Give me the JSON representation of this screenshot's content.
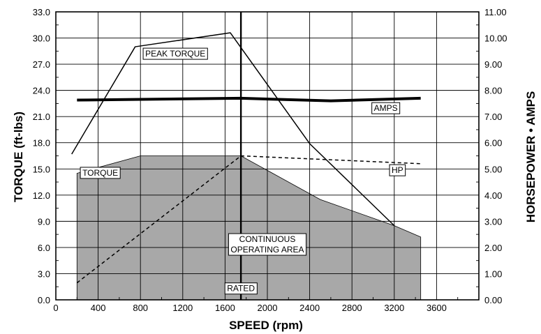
{
  "chart_data": {
    "type": "line",
    "title": "",
    "xlabel": "SPEED (rpm)",
    "ylabel_left": "TORQUE (ft-lbs)",
    "ylabel_right": "HORSEPOWER • AMPS",
    "xlim": [
      0,
      4000
    ],
    "ylim_left": [
      0,
      33
    ],
    "ylim_right": [
      0,
      11
    ],
    "grid": true,
    "x_ticks": [
      0,
      400,
      800,
      1200,
      1600,
      2000,
      2400,
      2800,
      3200,
      3600
    ],
    "x_tick_labels": [
      "0",
      "400",
      "800",
      "1200",
      "1600",
      "2000",
      "2400",
      "2800",
      "3200",
      "3600"
    ],
    "y_left_ticks": [
      0,
      3,
      6,
      9,
      12,
      15,
      18,
      21,
      24,
      27,
      30,
      33
    ],
    "y_left_tick_labels": [
      "0.0",
      "3.0",
      "6.0",
      "9.0",
      "12.0",
      "15.0",
      "18.0",
      "21.0",
      "24.0",
      "27.0",
      "30.0",
      "33.0"
    ],
    "y_right_ticks": [
      0,
      1,
      2,
      3,
      4,
      5,
      6,
      7,
      8,
      9,
      10,
      11
    ],
    "y_right_tick_labels": [
      "0.00",
      "1.00",
      "2.00",
      "3.00",
      "4.00",
      "5.00",
      "6.00",
      "7.00",
      "8.00",
      "9.00",
      "10.00",
      "11.00"
    ],
    "continuous_area": {
      "axis": "left",
      "color": "#a8a8a8",
      "points": [
        [
          200,
          0
        ],
        [
          200,
          14.5
        ],
        [
          800,
          16.5
        ],
        [
          1750,
          16.5
        ],
        [
          2500,
          11.5
        ],
        [
          3200,
          8.5
        ],
        [
          3450,
          7.2
        ],
        [
          3450,
          0
        ]
      ]
    },
    "rated_speed": 1750,
    "series": [
      {
        "axis": "left",
        "style": "solid",
        "width": 1.5,
        "x": [
          150,
          750,
          1650,
          2400,
          3200
        ],
        "y": [
          16.7,
          29.0,
          30.6,
          17.9,
          8.5
        ]
      },
      {
        "axis": "right",
        "style": "solid",
        "width": 4,
        "x": [
          200,
          1750,
          2600,
          3450
        ],
        "y": [
          7.63,
          7.7,
          7.6,
          7.7
        ]
      },
      {
        "axis": "right",
        "style": "dashed",
        "width": 1.5,
        "x": [
          200,
          1750,
          3450
        ],
        "y": [
          0.65,
          5.5,
          5.2
        ]
      }
    ],
    "annotations": [
      {
        "text": "PEAK TORQUE",
        "x": 1130,
        "y": 28.2,
        "axis": "left"
      },
      {
        "text": "AMPS",
        "x": 3120,
        "y": 7.32,
        "axis": "right"
      },
      {
        "text": "HP",
        "x": 3230,
        "y": 4.95,
        "axis": "right"
      },
      {
        "text": "TORQUE",
        "x": 420,
        "y": 14.55,
        "axis": "left"
      },
      {
        "text": "CONTINUOUS",
        "x": 2000,
        "y": 6.95,
        "axis": "left"
      },
      {
        "text": "OPERATING AREA",
        "x": 2000,
        "y": 5.75,
        "axis": "left"
      },
      {
        "text": "RATED",
        "x": 1750,
        "y": 1.3,
        "axis": "left"
      }
    ]
  }
}
